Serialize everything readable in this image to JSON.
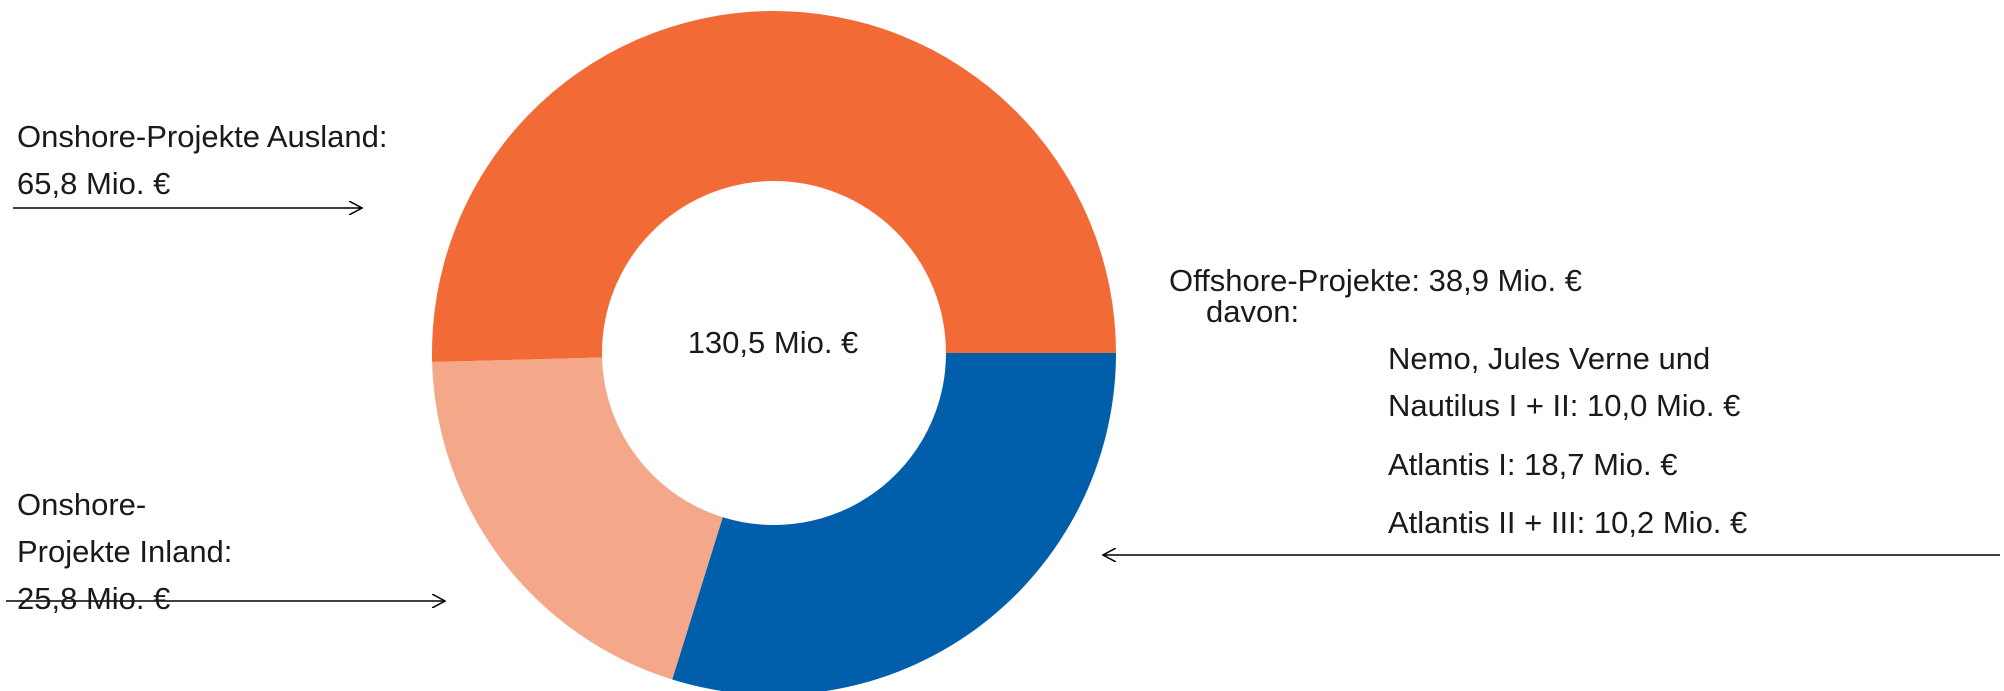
{
  "chart_data": {
    "type": "donut",
    "categories": [
      "Onshore-Projekte Ausland:",
      "Onshore-\nProjekte Inland:",
      "Offshore-Projekte:"
    ],
    "values": [
      65.8,
      25.8,
      38.9
    ],
    "value_labels": [
      "65,8 Mio. €",
      "25,8 Mio. €",
      "38,9 Mio. €"
    ],
    "colors": [
      "#f26a36",
      "#f5a889",
      "#005eab"
    ],
    "center_label": "130,5 Mio. €",
    "breakdown": {
      "label": "davon:",
      "items": [
        {
          "name": "Nemo, Jules Verne und\nNautilus I + II:",
          "value": 10.0,
          "value_label": "10,0 Mio. €"
        },
        {
          "name": "Atlantis I:",
          "value": 18.7,
          "value_label": "18,7 Mio. €"
        },
        {
          "name": "Atlantis II + III:",
          "value": 10.2,
          "value_label": "10,2 Mio. €"
        }
      ]
    }
  }
}
